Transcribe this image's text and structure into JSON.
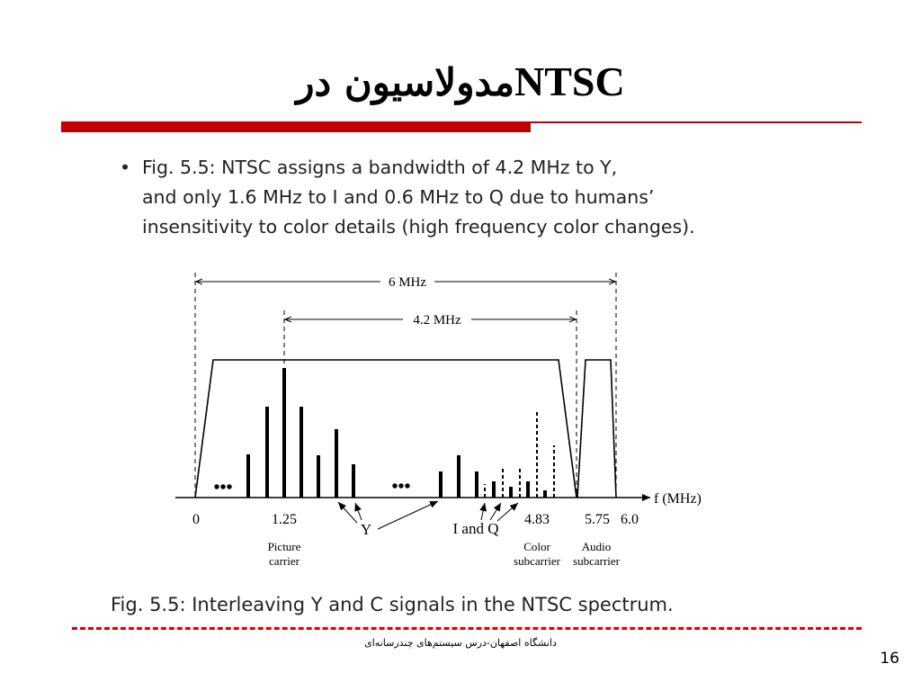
{
  "slide": {
    "title_fa": "مدولاسیون در",
    "title_en": "NTSC",
    "bullet_marker": "•",
    "bullet_line1": "Fig.  5.5:  NTSC assigns a bandwidth of 4.2 MHz to Y,",
    "bullet_line2": "and only 1.6 MHz to I and 0.6 MHz to Q due to humans’",
    "bullet_line3": "insensitivity to color details (high frequency color changes).",
    "caption": "Fig.  5.5:  Interleaving Y and C signals in the NTSC spectrum.",
    "footer": "دانشگاه اصفهان-درس سیستم‌های چندرسانه‌ای",
    "page_number": "16",
    "accent_color": "#c00000"
  },
  "diagram": {
    "span_total_label": "6 MHz",
    "span_y_label": "4.2 MHz",
    "axis_label": "f (MHz)",
    "tick_0": "0",
    "tick_125": "1.25",
    "tick_483": "4.83",
    "tick_575": "5.75",
    "tick_60": "6.0",
    "picture_carrier_line1": "Picture",
    "picture_carrier_line2": "carrier",
    "color_subcarrier_line1": "Color",
    "color_subcarrier_line2": "subcarrier",
    "audio_subcarrier_line1": "Audio",
    "audio_subcarrier_line2": "subcarrier",
    "y_label": "Y",
    "iq_label": "I and Q",
    "dots_glyph": "•••"
  }
}
